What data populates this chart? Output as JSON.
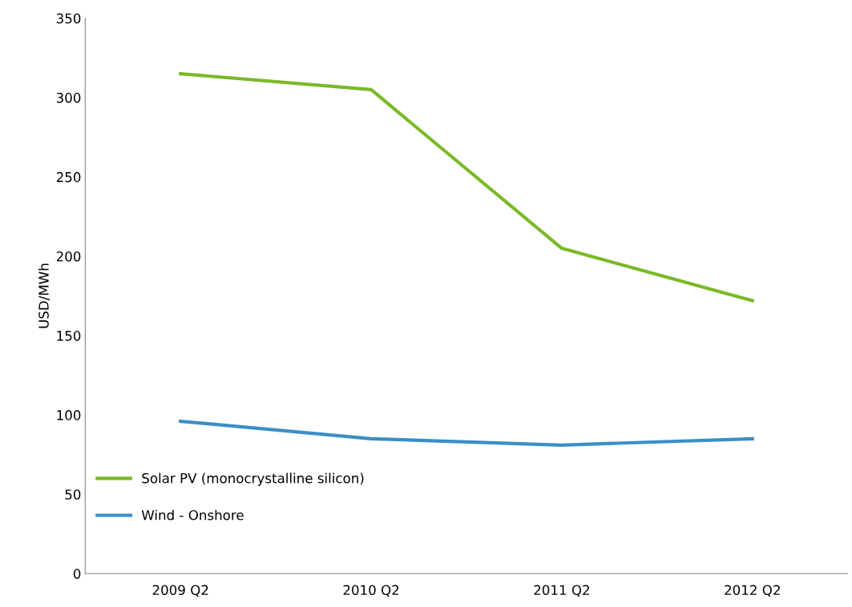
{
  "chart_data": {
    "type": "line",
    "ylabel": "USD/MWh",
    "categories": [
      "2009 Q2",
      "2010 Q2",
      "2011 Q2",
      "2012 Q2"
    ],
    "series": [
      {
        "name": "Solar PV (monocrystalline silicon)",
        "color": "#7ab929",
        "values": [
          315,
          305,
          205,
          172
        ]
      },
      {
        "name": "Wind - Onshore",
        "color": "#3a8fc7",
        "values": [
          96,
          85,
          81,
          85
        ]
      }
    ],
    "ylim": [
      0,
      350
    ],
    "yticks": [
      0,
      50,
      100,
      150,
      200,
      250,
      300,
      350
    ],
    "grid": false,
    "legend": "bottom left",
    "marker": "none",
    "line_style": "solid"
  }
}
